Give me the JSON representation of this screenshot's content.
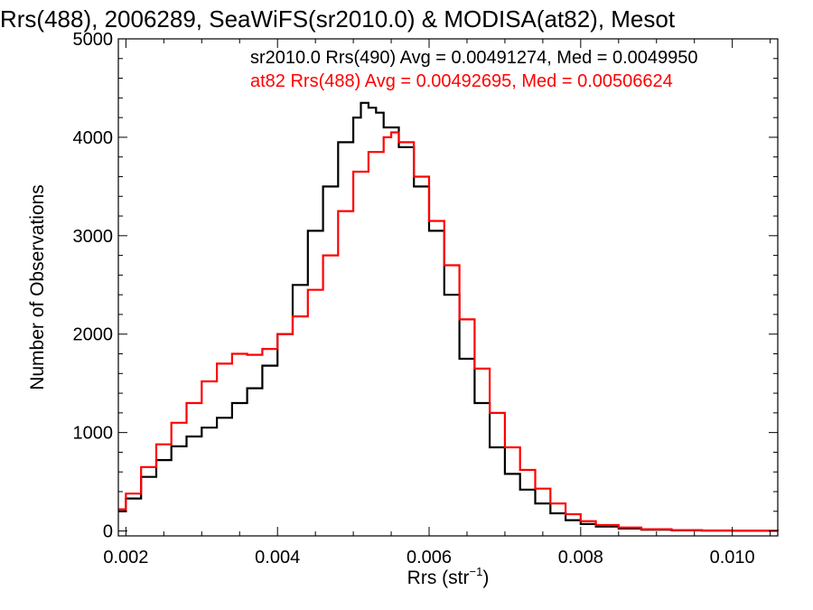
{
  "chart_data": {
    "type": "line",
    "title": "Rrs(488), 2006289, SeaWiFS(sr2010.0) & MODISA(at82), Mesot",
    "xlabel": "Rrs (str",
    "xlabel_sup": "−1",
    "xlabel_end": ")",
    "ylabel": "Number of Observations",
    "xlim": [
      0.0019,
      0.0106
    ],
    "ylim": [
      -50,
      5000
    ],
    "x_ticks": [
      0.002,
      0.004,
      0.006,
      0.008,
      0.01
    ],
    "x_tick_labels": [
      "0.002",
      "0.004",
      "0.006",
      "0.008",
      "0.010"
    ],
    "y_ticks": [
      0,
      1000,
      2000,
      3000,
      4000,
      5000
    ],
    "y_tick_labels": [
      "0",
      "1000",
      "2000",
      "3000",
      "4000",
      "5000"
    ],
    "grid": false,
    "legend_placement": "top-right",
    "series": [
      {
        "name": "sr2010.0 Rrs(490) Avg = 0.00491274, Med = 0.0049950",
        "color": "#000000",
        "x": [
          0.0019,
          0.002,
          0.0022,
          0.0024,
          0.0026,
          0.0028,
          0.003,
          0.0032,
          0.0034,
          0.0036,
          0.0038,
          0.004,
          0.0042,
          0.0044,
          0.0046,
          0.0048,
          0.005,
          0.0051,
          0.0052,
          0.0053,
          0.0054,
          0.0056,
          0.0058,
          0.006,
          0.0062,
          0.0064,
          0.0066,
          0.0068,
          0.007,
          0.0072,
          0.0074,
          0.0076,
          0.0078,
          0.008,
          0.0082,
          0.0085,
          0.0088,
          0.0092,
          0.0096,
          0.01,
          0.0106
        ],
        "y": [
          200,
          330,
          550,
          720,
          860,
          960,
          1050,
          1150,
          1300,
          1450,
          1680,
          2000,
          2500,
          3050,
          3500,
          3950,
          4200,
          4350,
          4300,
          4250,
          4100,
          3900,
          3500,
          3050,
          2400,
          1750,
          1300,
          850,
          580,
          420,
          280,
          180,
          110,
          70,
          45,
          25,
          12,
          6,
          3,
          2,
          1
        ]
      },
      {
        "name": "at82 Rrs(488) Avg = 0.00492695, Med = 0.00506624",
        "color": "#ff0000",
        "x": [
          0.0019,
          0.002,
          0.0022,
          0.0024,
          0.0026,
          0.0028,
          0.003,
          0.0032,
          0.0034,
          0.0036,
          0.0038,
          0.004,
          0.0042,
          0.0044,
          0.0046,
          0.0048,
          0.005,
          0.0052,
          0.0054,
          0.0055,
          0.0056,
          0.0058,
          0.006,
          0.0062,
          0.0064,
          0.0066,
          0.0068,
          0.007,
          0.0072,
          0.0074,
          0.0076,
          0.0078,
          0.008,
          0.0082,
          0.0085,
          0.0088,
          0.0092,
          0.0096,
          0.01,
          0.0106
        ],
        "y": [
          220,
          380,
          650,
          880,
          1100,
          1300,
          1520,
          1700,
          1800,
          1790,
          1850,
          2000,
          2180,
          2450,
          2800,
          3250,
          3650,
          3850,
          4000,
          4050,
          3950,
          3600,
          3150,
          2700,
          2150,
          1650,
          1200,
          850,
          620,
          430,
          280,
          170,
          100,
          60,
          35,
          18,
          9,
          5,
          3,
          2
        ]
      }
    ]
  }
}
